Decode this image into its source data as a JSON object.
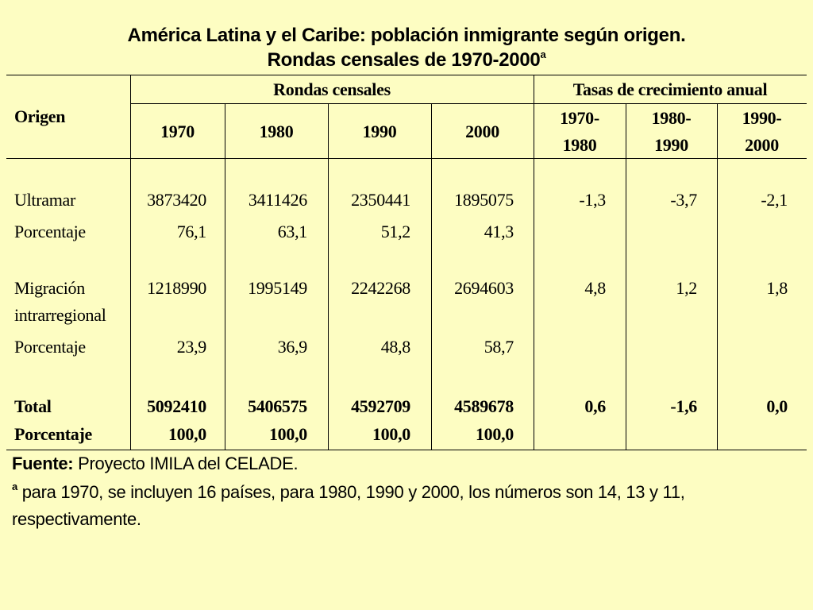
{
  "title": {
    "line1": "América Latina y el Caribe: población inmigrante según origen.",
    "line2": "Rondas censales de 1970-2000",
    "line2_sup": "a"
  },
  "table": {
    "origen_header": "Origen",
    "group_rondas": "Rondas censales",
    "group_tasas": "Tasas de crecimiento anual",
    "years": [
      "1970",
      "1980",
      "1990",
      "2000"
    ],
    "periods": [
      {
        "a": "1970-",
        "b": "1980"
      },
      {
        "a": "1980-",
        "b": "1990"
      },
      {
        "a": "1990-",
        "b": "2000"
      }
    ],
    "rows": [
      {
        "label": "Ultramar",
        "values": [
          "3873420",
          "3411426",
          "2350441",
          "1895075"
        ],
        "rates": [
          "-1,3",
          "-3,7",
          "-2,1"
        ]
      },
      {
        "label": "Porcentaje",
        "values": [
          "76,1",
          "63,1",
          "51,2",
          "41,3"
        ],
        "rates": [
          "",
          "",
          ""
        ]
      },
      {
        "label": "Migración",
        "label2": "intrarregional",
        "values": [
          "1218990",
          "1995149",
          "2242268",
          "2694603"
        ],
        "rates": [
          "4,8",
          "1,2",
          "1,8"
        ]
      },
      {
        "label": "Porcentaje",
        "values": [
          "23,9",
          "36,9",
          "48,8",
          "58,7"
        ],
        "rates": [
          "",
          "",
          ""
        ]
      },
      {
        "label": "Total",
        "values": [
          "5092410",
          "5406575",
          "4592709",
          "4589678"
        ],
        "rates": [
          "0,6",
          "-1,6",
          "0,0"
        ]
      },
      {
        "label": "Porcentaje",
        "values": [
          "100,0",
          "100,0",
          "100,0",
          "100,0"
        ],
        "rates": [
          "",
          "",
          ""
        ]
      }
    ]
  },
  "footer": {
    "source_label": "Fuente:",
    "source_text": " Proyecto IMILA del CELADE.",
    "note_sup": "a",
    "note_line1": " para 1970, se incluyen 16 países, para 1980, 1990 y 2000, los números son 14, 13 y 11,",
    "note_line2": "respectivamente."
  }
}
